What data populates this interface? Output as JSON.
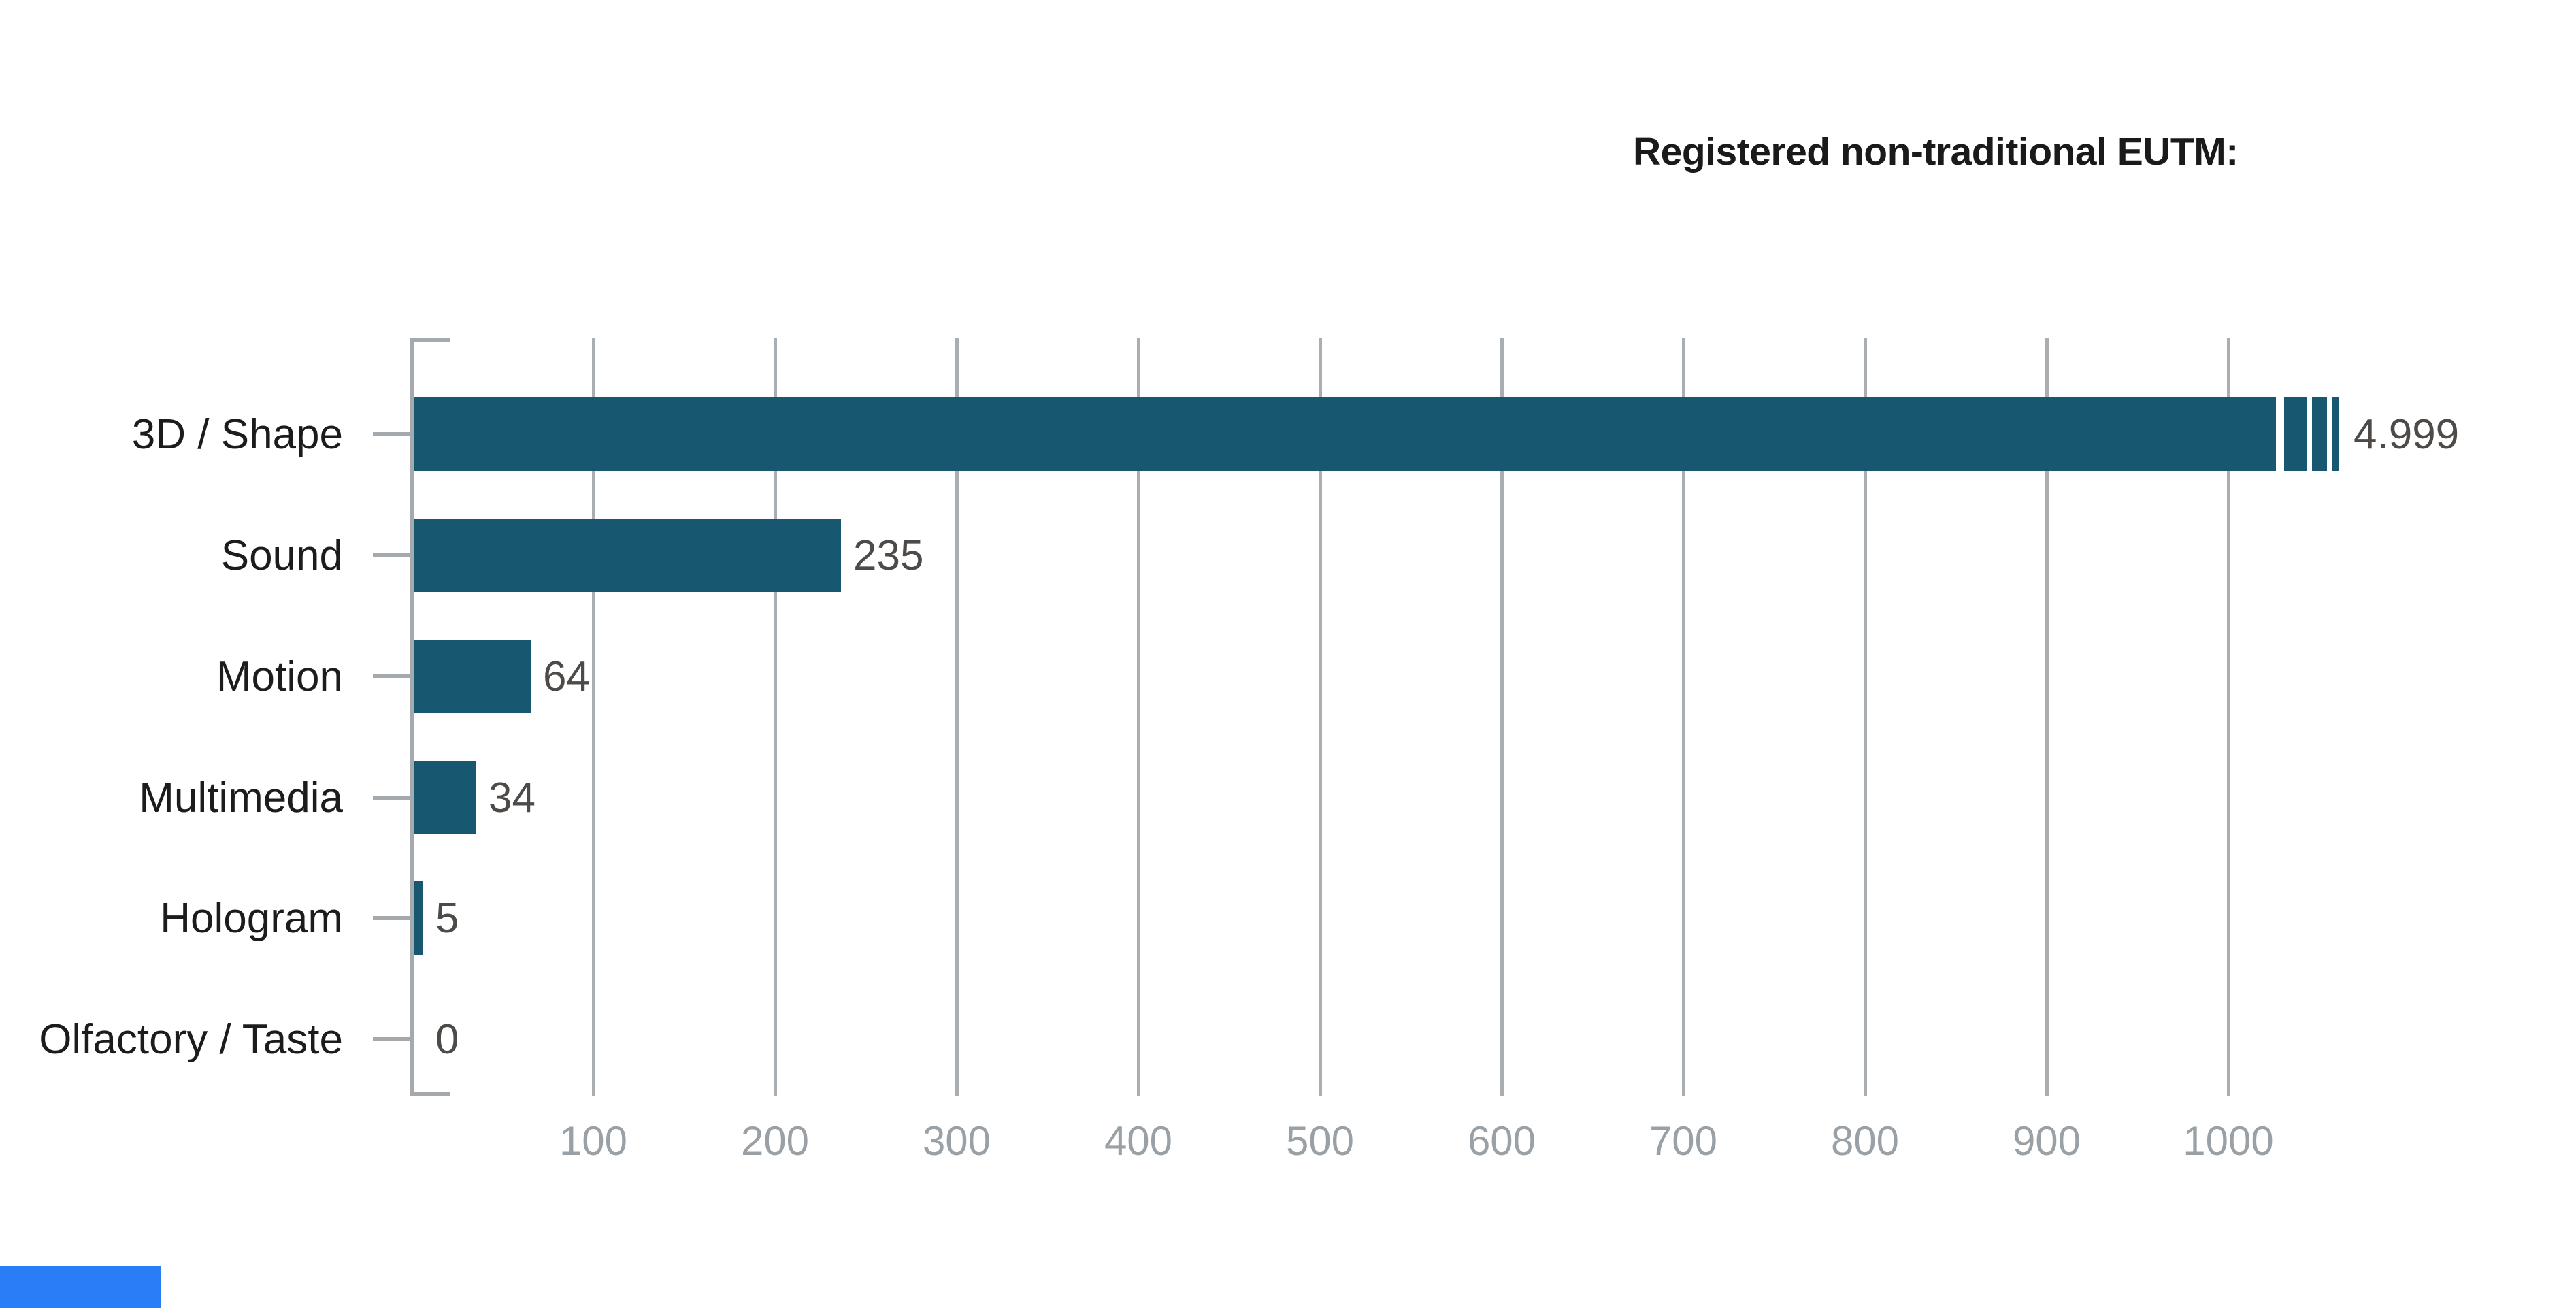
{
  "header": {
    "title": "Registered non-traditional EUTM:"
  },
  "chart_data": {
    "type": "bar",
    "orientation": "horizontal",
    "title": "Registered non-traditional EUTM:",
    "categories": [
      "3D / Shape",
      "Sound",
      "Motion",
      "Multimedia",
      "Hologram",
      "Olfactory / Taste"
    ],
    "values": [
      4999,
      235,
      64,
      34,
      5,
      0
    ],
    "value_labels_displayed": [
      "4.999",
      "235",
      "64",
      "34",
      "5",
      "0"
    ],
    "x_axis": {
      "ticks": [
        100,
        200,
        300,
        400,
        500,
        600,
        700,
        800,
        900,
        1000
      ],
      "range_shown": [
        0,
        1075
      ],
      "gridlines": true,
      "tick_label_position": "bottom"
    },
    "broken_bar": {
      "category": "3D / Shape",
      "value": 4999,
      "displayed_value_label": "4.999",
      "break_marks": 3,
      "note": "bar truncated beyond 1000 with three narrowing break segments"
    },
    "legend": "none",
    "grid": "vertical gridlines every 100 units",
    "colors": {
      "bar": "#17576f",
      "gridline": "#a9aeb2",
      "axis": "#a3a9ad",
      "category_label": "#1c1c1c",
      "value_label": "#4d4a47",
      "tick_label": "#9aa1a6",
      "title": "#1a1a1a",
      "footer_accent": "#2b7cf7",
      "background": "#ffffff"
    }
  },
  "footer": {
    "accent_bar": true
  }
}
